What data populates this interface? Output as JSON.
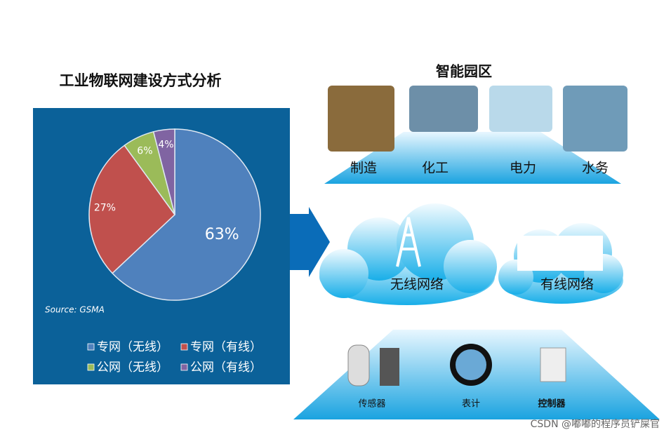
{
  "chart_data": {
    "type": "pie",
    "title": "工业物联网建设方式分析",
    "categories": [
      "专网（无线）",
      "专网（有线）",
      "公网（无线）",
      "公网（有线）"
    ],
    "values": [
      63,
      27,
      6,
      4
    ],
    "value_labels": [
      "63%",
      "27%",
      "6%",
      "4%"
    ],
    "colors": [
      "#4f81bd",
      "#c0504d",
      "#9bbb59",
      "#8064a2"
    ],
    "annotation": "Source: GSMA",
    "legend": "bottom"
  },
  "park": {
    "title": "智能园区",
    "items": [
      "制造",
      "化工",
      "电力",
      "水务"
    ]
  },
  "networks": [
    "无线网络",
    "有线网络"
  ],
  "devices": [
    "传感器",
    "表计",
    "控制器"
  ],
  "watermark": "CSDN @嘟嘟的程序员铲屎官"
}
